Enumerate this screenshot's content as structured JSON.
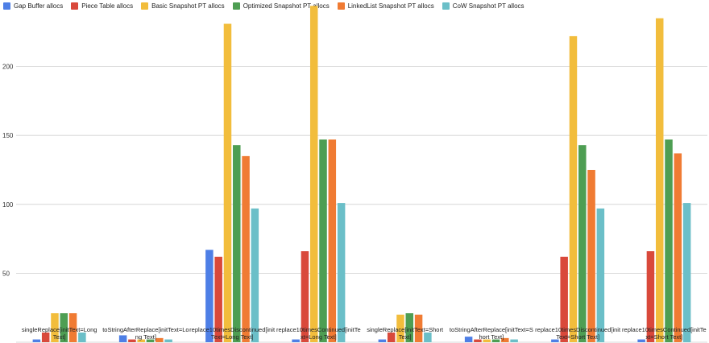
{
  "chart_data": {
    "type": "bar",
    "title": "",
    "xlabel": "",
    "ylabel": "",
    "ylim": [
      0,
      245
    ],
    "yticks": [
      50,
      100,
      150,
      200
    ],
    "grid": true,
    "legend_position": "top-left",
    "categories": [
      "singleReplace[initText=Long Text]",
      "toStringAfterReplace[initText=Long Text]",
      "replace10timesDiscontinued[initText=Long Text]",
      "replace10timesContinued[initText=Long Text]",
      "singleReplace[initText=Short Text]",
      "toStringAfterReplace[initText=Short Text]",
      "replace10timesDiscontinued[initText=Short Text]",
      "replace10timesContinued[initText=Short Text]"
    ],
    "category_label_lines": [
      [
        "singleReplace[initText=Long",
        "Text]"
      ],
      [
        "toStringAfterReplace[initText=Lo",
        "ng Text]"
      ],
      [
        "replace10timesDiscontinued[init",
        "Text=Long Text]"
      ],
      [
        "replace10timesContinued[initTe",
        "xt=Long Text]"
      ],
      [
        "singleReplace[initText=Short",
        "Text]"
      ],
      [
        "toStringAfterReplace[initText=S",
        "hort Text]"
      ],
      [
        "replace10timesDiscontinued[init",
        "Text=Short Text]"
      ],
      [
        "replace10timesContinued[initTe",
        "xt=Short Text]"
      ]
    ],
    "series": [
      {
        "name": "Gap Buffer allocs",
        "color": "#4e7fe6",
        "values": [
          2,
          5,
          67,
          2,
          2,
          4,
          2,
          2
        ]
      },
      {
        "name": "Piece Table allocs",
        "color": "#d9493b",
        "values": [
          7,
          2,
          62,
          66,
          7,
          2,
          62,
          66
        ]
      },
      {
        "name": "Basic Snapshot PT allocs",
        "color": "#f2bd3c",
        "values": [
          21,
          2,
          231,
          244,
          20,
          2,
          222,
          235
        ]
      },
      {
        "name": "Optimized Snapshot PT allocs",
        "color": "#4e9e53",
        "values": [
          21,
          2,
          143,
          147,
          21,
          2,
          143,
          147
        ]
      },
      {
        "name": "LinkedList Snapshot PT allocs",
        "color": "#f07b33",
        "values": [
          21,
          3,
          135,
          147,
          20,
          3,
          125,
          137
        ]
      },
      {
        "name": "CoW Snapshot PT allocs",
        "color": "#6bbfc8",
        "values": [
          7,
          2,
          97,
          101,
          7,
          2,
          97,
          101
        ]
      }
    ]
  }
}
